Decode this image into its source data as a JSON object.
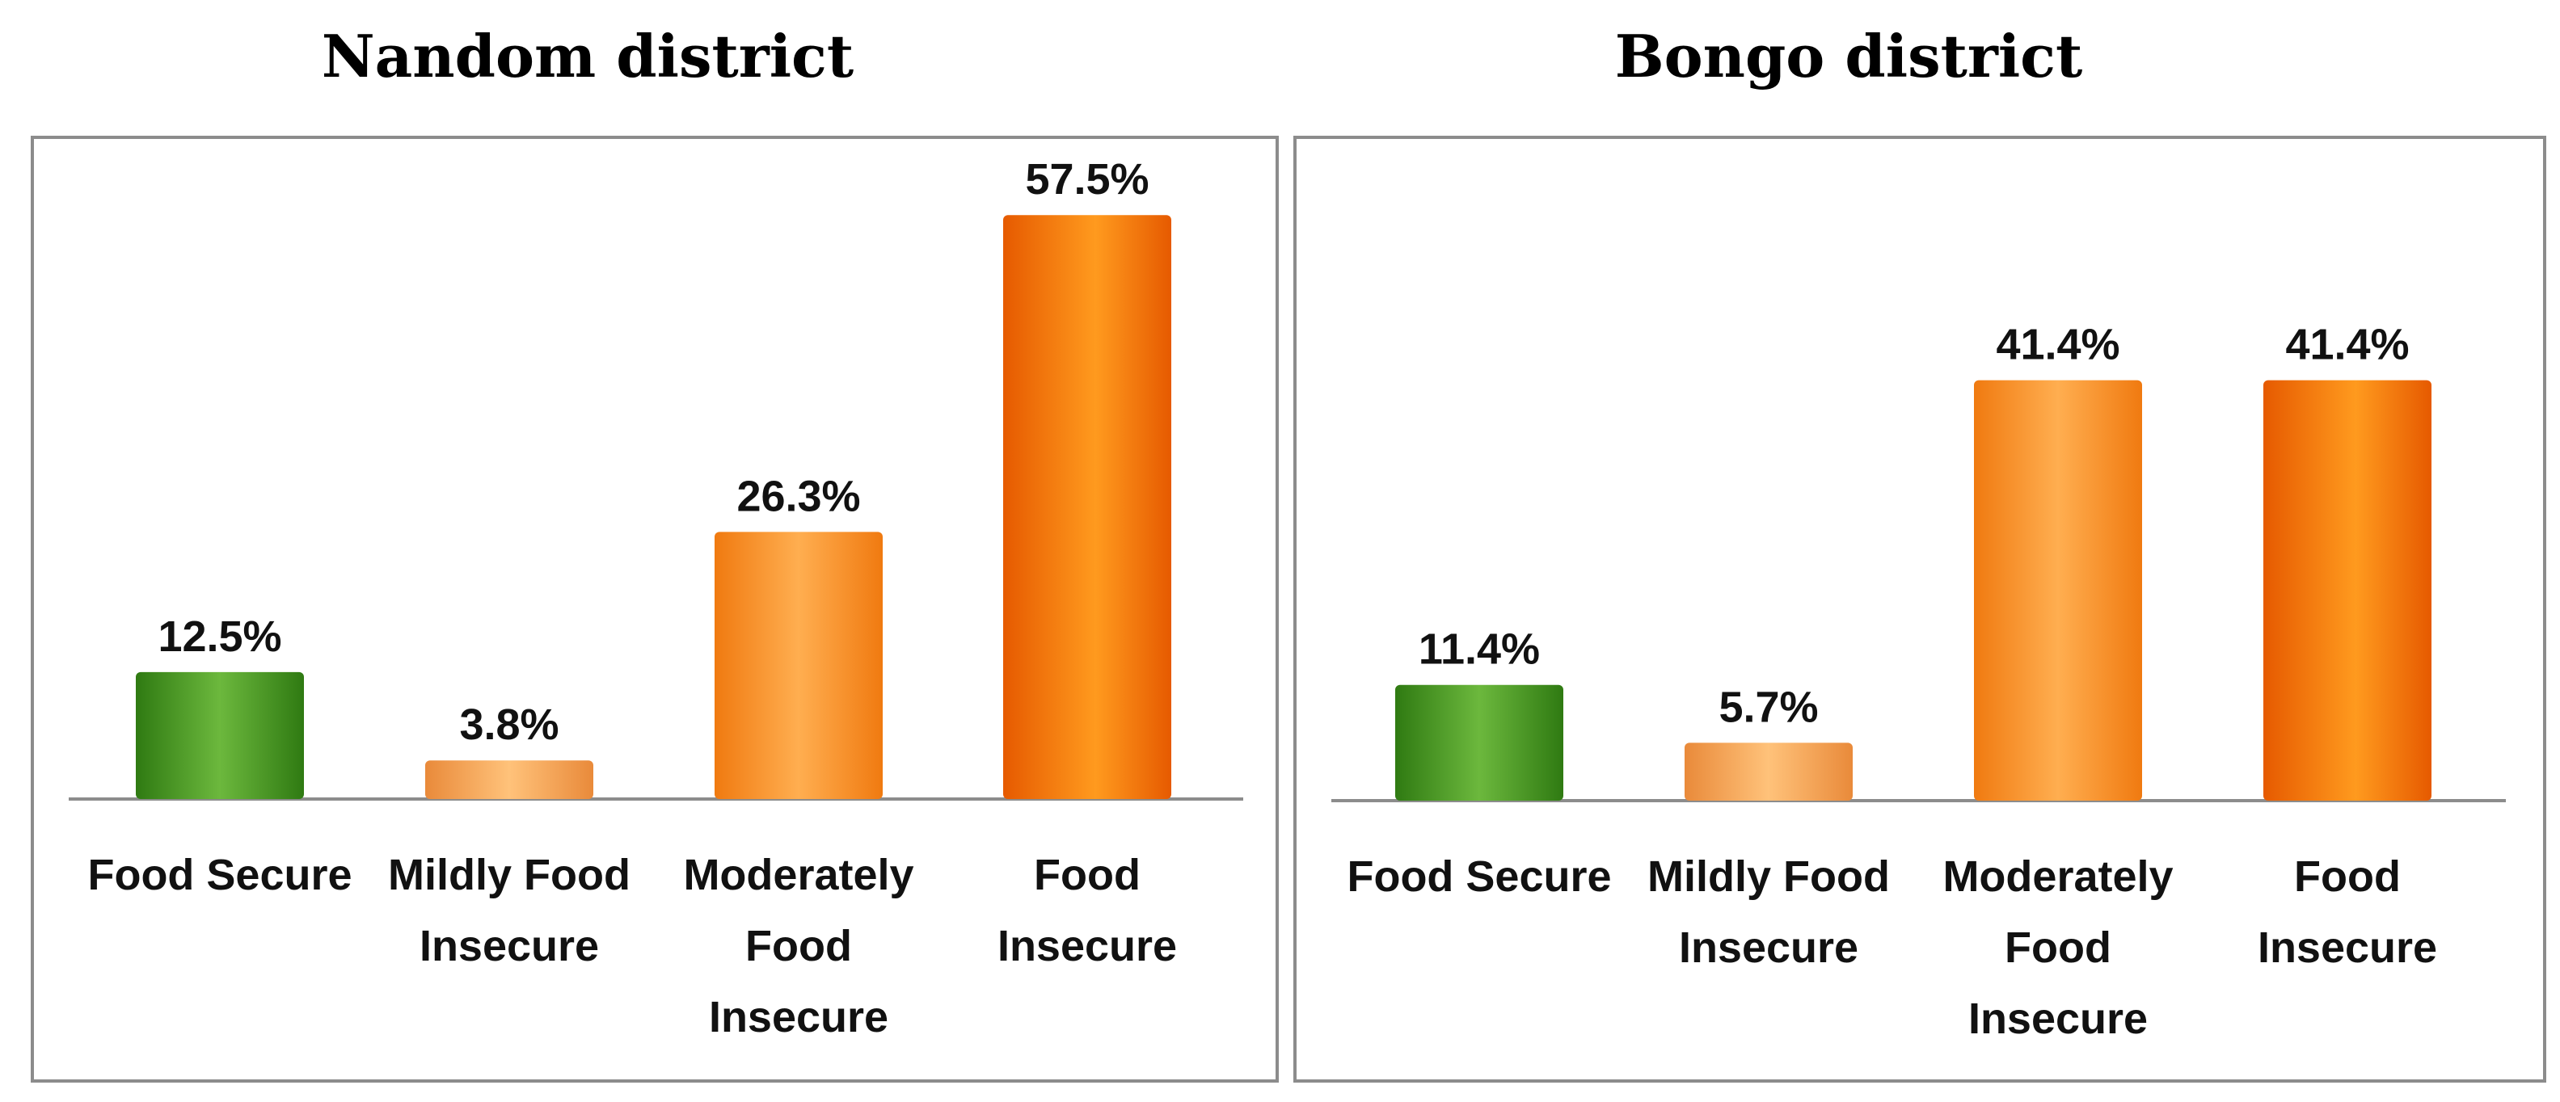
{
  "colors": {
    "secure_dark": "#2f7a12",
    "secure_light": "#6cb83d",
    "mild_dark": "#e98a3a",
    "mild_light": "#ffc27a",
    "moderate_dark": "#f07a10",
    "moderate_light": "#ffae50",
    "insecure_dark": "#e65a00",
    "insecure_light": "#ff9a1e"
  },
  "chart_data": [
    {
      "type": "bar",
      "title": "Nandom district",
      "categories": [
        [
          "Food Secure"
        ],
        [
          "Mildly Food",
          "Insecure"
        ],
        [
          "Moderately",
          "Food",
          "Insecure"
        ],
        [
          "Food",
          "Insecure"
        ]
      ],
      "values": [
        12.5,
        3.8,
        26.3,
        57.5
      ],
      "value_labels": [
        "12.5%",
        "3.8%",
        "26.3%",
        "57.5%"
      ],
      "ylim": [
        0,
        60
      ],
      "xlabel": "",
      "ylabel": "",
      "grid": false
    },
    {
      "type": "bar",
      "title": "Bongo district",
      "categories": [
        [
          "Food Secure"
        ],
        [
          "Mildly Food",
          "Insecure"
        ],
        [
          "Moderately",
          "Food",
          "Insecure"
        ],
        [
          "Food",
          "Insecure"
        ]
      ],
      "values": [
        11.4,
        5.7,
        41.4,
        41.4
      ],
      "value_labels": [
        "11.4%",
        "5.7%",
        "41.4%",
        "41.4%"
      ],
      "ylim": [
        0,
        60
      ],
      "xlabel": "",
      "ylabel": "",
      "grid": false
    }
  ]
}
